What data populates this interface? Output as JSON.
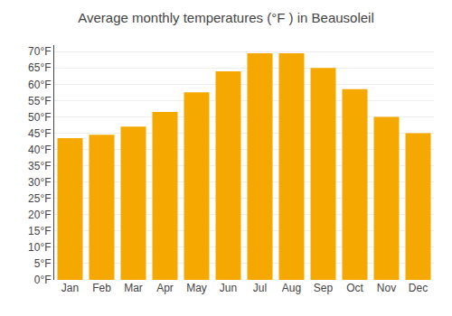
{
  "chart_data": {
    "type": "bar",
    "title": "Average monthly temperatures (°F ) in Beausoleil",
    "categories": [
      "Jan",
      "Feb",
      "Mar",
      "Apr",
      "May",
      "Jun",
      "Jul",
      "Aug",
      "Sep",
      "Oct",
      "Nov",
      "Dec"
    ],
    "values": [
      43.5,
      44.5,
      47.0,
      51.5,
      57.5,
      64.0,
      69.5,
      69.5,
      65.0,
      58.5,
      50.0,
      45.0
    ],
    "color": "#F5A800",
    "ylim": [
      0,
      72
    ],
    "yticks": [
      {
        "value": 0,
        "label": "0°F"
      },
      {
        "value": 5,
        "label": "5°F"
      },
      {
        "value": 10,
        "label": "10°F"
      },
      {
        "value": 15,
        "label": "15°F"
      },
      {
        "value": 20,
        "label": "20°F"
      },
      {
        "value": 25,
        "label": "25°F"
      },
      {
        "value": 30,
        "label": "30°F"
      },
      {
        "value": 35,
        "label": "35°F"
      },
      {
        "value": 40,
        "label": "40°F"
      },
      {
        "value": 45,
        "label": "45°F"
      },
      {
        "value": 50,
        "label": "50°F"
      },
      {
        "value": 55,
        "label": "55°F"
      },
      {
        "value": 60,
        "label": "60°F"
      },
      {
        "value": 65,
        "label": "65°F"
      },
      {
        "value": 70,
        "label": "70°F"
      }
    ],
    "grid": true
  }
}
